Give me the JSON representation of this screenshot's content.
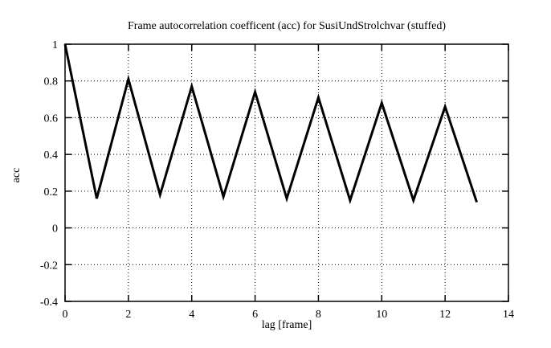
{
  "page": {
    "background_color": "#ffffff",
    "foreground_color": "#000000"
  },
  "chart_data": {
    "type": "line",
    "title": "Frame autocorrelation coefficent (acc) for SusiUndStrolchvar (stuffed)",
    "xlabel": "lag [frame]",
    "ylabel": "acc",
    "x": [
      0,
      1,
      2,
      3,
      4,
      5,
      6,
      7,
      8,
      9,
      10,
      11,
      12,
      13
    ],
    "y": [
      1.0,
      0.16,
      0.81,
      0.18,
      0.77,
      0.17,
      0.74,
      0.16,
      0.71,
      0.15,
      0.68,
      0.15,
      0.66,
      0.14
    ],
    "xlim": [
      0,
      14
    ],
    "ylim": [
      -0.4,
      1.0
    ],
    "xticks": [
      0,
      2,
      4,
      6,
      8,
      10,
      12,
      14
    ],
    "xtick_labels": [
      "0",
      "2",
      "4",
      "6",
      "8",
      "10",
      "12",
      "14"
    ],
    "yticks": [
      1.0,
      0.8,
      0.6,
      0.4,
      0.2,
      0.0,
      -0.2,
      -0.4
    ],
    "ytick_labels": [
      "1",
      "0.8",
      "0.6",
      "0.4",
      "0.2",
      "0",
      "-0.2",
      "-0.4"
    ],
    "grid": true,
    "grid_style": "dotted",
    "legend": "none",
    "line_color": "#000000",
    "background_color": "#ffffff"
  }
}
